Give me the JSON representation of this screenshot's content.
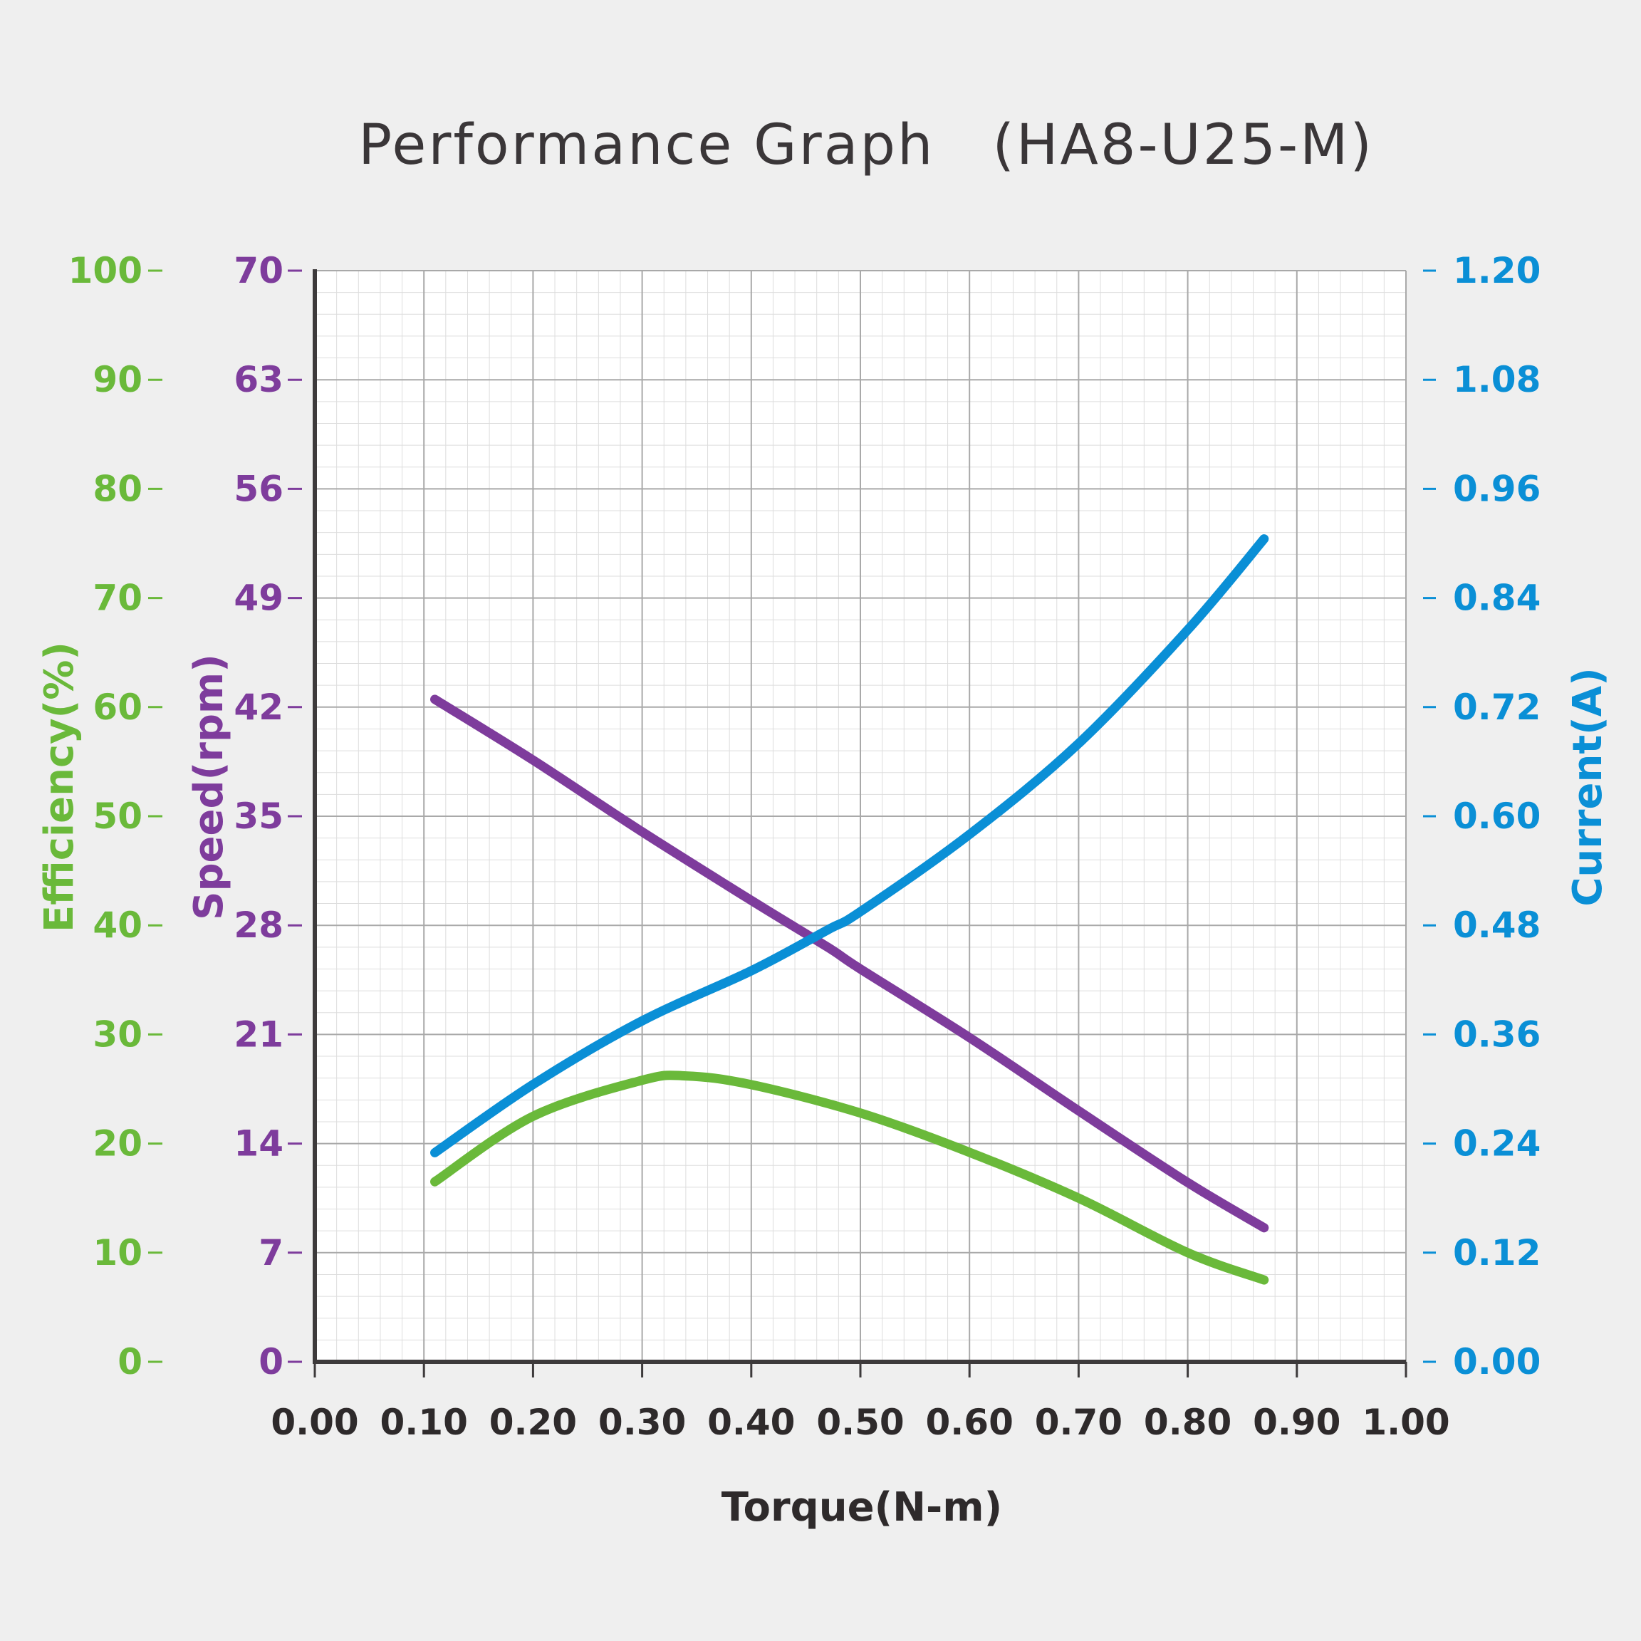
{
  "chart_data": {
    "type": "line",
    "title": "Performance Graph　(HA8-U25-M)",
    "xlabel": "Torque(N-m)",
    "xlim": [
      0,
      1
    ],
    "x_ticks": [
      "0.00",
      "0.10",
      "0.20",
      "0.30",
      "0.40",
      "0.50",
      "0.60",
      "0.70",
      "0.80",
      "0.90",
      "1.00"
    ],
    "grid": true,
    "axes": {
      "efficiency": {
        "label": "Efficiency(%)",
        "side": "left-outer",
        "color": "#6ab93a",
        "ylim": [
          0,
          100
        ],
        "ticks": [
          "100",
          "90",
          "80",
          "70",
          "60",
          "50",
          "40",
          "30",
          "20",
          "10",
          "0"
        ]
      },
      "speed": {
        "label": "Speed(rpm)",
        "side": "left-inner",
        "color": "#7e3c9c",
        "ylim": [
          0,
          70
        ],
        "ticks": [
          "70",
          "63",
          "56",
          "49",
          "42",
          "35",
          "28",
          "21",
          "14",
          "7",
          "0"
        ]
      },
      "current": {
        "label": "Current(A)",
        "side": "right",
        "color": "#0a8fd6",
        "ylim": [
          0,
          1.2
        ],
        "ticks": [
          "1.20",
          "1.08",
          "0.96",
          "0.84",
          "0.72",
          "0.60",
          "0.48",
          "0.36",
          "0.24",
          "0.12",
          "0.00"
        ]
      }
    },
    "series": [
      {
        "name": "Speed",
        "axis": "speed",
        "color": "#7e3c9c",
        "x": [
          0.11,
          0.2,
          0.3,
          0.4,
          0.47,
          0.5,
          0.6,
          0.7,
          0.8,
          0.87
        ],
        "y": [
          42.5,
          38.6,
          34.0,
          29.6,
          26.6,
          25.2,
          20.8,
          16.1,
          11.5,
          8.6
        ]
      },
      {
        "name": "Current",
        "axis": "current",
        "color": "#0a8fd6",
        "x": [
          0.11,
          0.2,
          0.3,
          0.4,
          0.47,
          0.5,
          0.6,
          0.7,
          0.8,
          0.87
        ],
        "y": [
          0.23,
          0.305,
          0.375,
          0.43,
          0.475,
          0.495,
          0.58,
          0.68,
          0.805,
          0.905
        ]
      },
      {
        "name": "Efficiency",
        "axis": "efficiency",
        "color": "#6ab93a",
        "x": [
          0.11,
          0.2,
          0.3,
          0.34,
          0.4,
          0.5,
          0.6,
          0.7,
          0.8,
          0.87
        ],
        "y": [
          16.5,
          22.5,
          25.8,
          26.2,
          25.4,
          22.8,
          19.2,
          15.0,
          10.0,
          7.5
        ]
      }
    ]
  }
}
